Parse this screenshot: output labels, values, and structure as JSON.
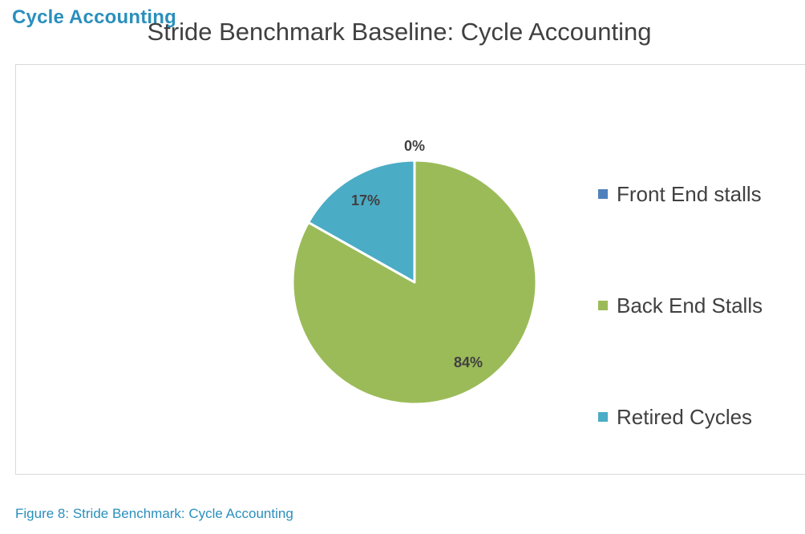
{
  "page": {
    "heading": "Cycle Accounting"
  },
  "caption": {
    "label": "Figure 8:",
    "text": " Stride Benchmark: Cycle Accounting"
  },
  "colors": {
    "heading": "#2a8fbd",
    "front_end": "#4f81bd",
    "back_end": "#9bbb59",
    "retired": "#4bacc6"
  },
  "chart_data": {
    "type": "pie",
    "title": "Stride Benchmark Baseline: Cycle Accounting",
    "categories": [
      "Front End stalls",
      "Back End Stalls",
      "Retired Cycles"
    ],
    "values": [
      0,
      84,
      17
    ],
    "data_labels": [
      "0%",
      "84%",
      "17%"
    ],
    "colors": [
      "#4f81bd",
      "#9bbb59",
      "#4bacc6"
    ],
    "legend": "right"
  }
}
